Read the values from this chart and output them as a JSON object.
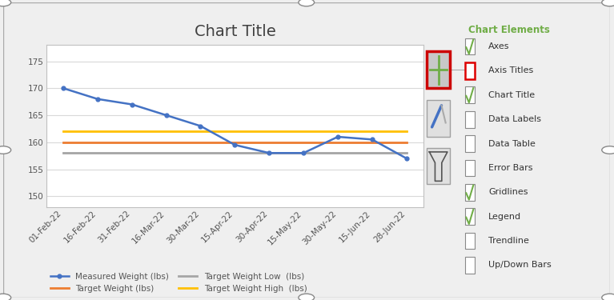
{
  "title": "Chart Title",
  "x_labels": [
    "01-Feb-22",
    "16-Feb-22",
    "31-Feb-22",
    "16-Mar-22",
    "30-Mar-22",
    "15-Apr-22",
    "30-Apr-22",
    "15-May-22",
    "30-May-22",
    "15-Jun-22",
    "28-Jun-22"
  ],
  "measured_weight": [
    170,
    168,
    167,
    165,
    163,
    159.5,
    158,
    158,
    161,
    160.5,
    157
  ],
  "target_weight": [
    160,
    160,
    160,
    160,
    160,
    160,
    160,
    160,
    160,
    160,
    160
  ],
  "target_low": [
    158,
    158,
    158,
    158,
    158,
    158,
    158,
    158,
    158,
    158,
    158
  ],
  "target_high": [
    162,
    162,
    162,
    162,
    162,
    162,
    162,
    162,
    162,
    162,
    162
  ],
  "ylim": [
    148,
    178
  ],
  "yticks": [
    150,
    155,
    160,
    165,
    170,
    175
  ],
  "measured_color": "#4472C4",
  "target_color": "#ED7D31",
  "target_low_color": "#A5A5A5",
  "target_high_color": "#FFC000",
  "bg_color": "#EFEFEF",
  "chart_bg": "#FFFFFF",
  "grid_color": "#D9D9D9",
  "legend_labels": [
    "Measured Weight (lbs)",
    "Target Weight (lbs)",
    "Target Weight Low  (lbs)",
    "Target Weight High  (lbs)"
  ],
  "border_color": "#A0A0A0",
  "title_fontsize": 14,
  "axis_fontsize": 7.5,
  "legend_fontsize": 7.5,
  "chart_elements_title": "Chart Elements",
  "chart_elements_items": [
    {
      "label": "Axes",
      "checked": true,
      "highlighted": false
    },
    {
      "label": "Axis Titles",
      "checked": false,
      "highlighted": true
    },
    {
      "label": "Chart Title",
      "checked": true,
      "highlighted": false
    },
    {
      "label": "Data Labels",
      "checked": false,
      "highlighted": false
    },
    {
      "label": "Data Table",
      "checked": false,
      "highlighted": false
    },
    {
      "label": "Error Bars",
      "checked": false,
      "highlighted": false
    },
    {
      "label": "Gridlines",
      "checked": true,
      "highlighted": false
    },
    {
      "label": "Legend",
      "checked": true,
      "highlighted": false
    },
    {
      "label": "Trendline",
      "checked": false,
      "highlighted": false
    },
    {
      "label": "Up/Down Bars",
      "checked": false,
      "highlighted": false
    }
  ]
}
